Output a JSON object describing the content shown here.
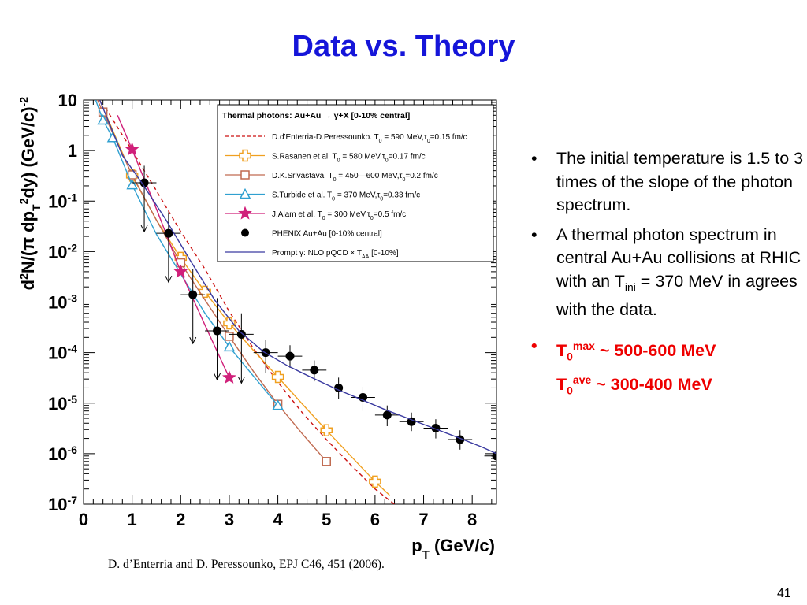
{
  "slide": {
    "title": "Data vs. Theory",
    "citation": "D. d’Enterria and D. Peressounko, EPJ C46, 451 (2006).",
    "page_number": "41",
    "bullets": [
      {
        "text": "The initial temperature is 1.5 to 3 times of the slope of the photon spectrum."
      },
      {
        "pre": "A thermal photon spectrum in central Au+Au collisions at RHIC with an T",
        "sub": "ini",
        "post": " = 370 MeV in agrees with the data."
      }
    ],
    "red_bullet": {
      "l1_base": "T",
      "l1_sub": "0",
      "l1_sup": "max",
      "l1_rest": " ~ 500-600 MeV",
      "l2_base": "T",
      "l2_sub": "0",
      "l2_sup": "ave",
      "l2_rest": " ~  300-400 MeV"
    }
  },
  "chart_data": {
    "type": "scatter",
    "title": "Thermal photons: Au+Au → γ+X  [0-10% central]",
    "xlabel": "p_T (GeV/c)",
    "ylabel": "d²N/(π dp_T²dy) (GeV/c)⁻²",
    "xlim": [
      0,
      8.5
    ],
    "ylim": [
      1e-07,
      10
    ],
    "ylog": true,
    "x_ticks": [
      "0",
      "1",
      "2",
      "3",
      "4",
      "5",
      "6",
      "7",
      "8"
    ],
    "y_ticks": [
      {
        "base": "10",
        "exp": ""
      },
      {
        "base": "1",
        "exp": ""
      },
      {
        "base": "10",
        "exp": "-1"
      },
      {
        "base": "10",
        "exp": "-2"
      },
      {
        "base": "10",
        "exp": "-3"
      },
      {
        "base": "10",
        "exp": "-4"
      },
      {
        "base": "10",
        "exp": "-5"
      },
      {
        "base": "10",
        "exp": "-6"
      },
      {
        "base": "10",
        "exp": "-7"
      }
    ],
    "series": [
      {
        "name": "D.d'Enterria-D.Peressounko, T₀ = 590 MeV, τ₀=0.15 fm/c",
        "style": "dashed-curve",
        "color": "#cc1111",
        "curve": [
          [
            0.45,
            7
          ],
          [
            1,
            1
          ],
          [
            1.5,
            0.16
          ],
          [
            2,
            0.025
          ],
          [
            2.5,
            0.0045
          ],
          [
            3,
            0.00065
          ],
          [
            3.5,
            0.00012
          ],
          [
            4,
            2.6e-05
          ],
          [
            4.5,
            6.5e-06
          ],
          [
            5,
            1.9e-06
          ],
          [
            5.5,
            6e-07
          ],
          [
            6,
            2e-07
          ],
          [
            6.6,
            7e-08
          ]
        ]
      },
      {
        "name": "S.Rasanen et al. T₀ = 580 MeV, τ₀=0.17 fm/c",
        "style": "curve-cross",
        "color": "#f0a020",
        "points": [
          [
            1,
            0.32
          ],
          [
            2,
            0.0075
          ],
          [
            2.5,
            0.0016
          ],
          [
            3,
            0.00038
          ],
          [
            4,
            3.3e-05
          ],
          [
            5,
            2.9e-06
          ],
          [
            6,
            2.8e-07
          ]
        ],
        "curve": [
          [
            0.3,
            12
          ],
          [
            1,
            0.32
          ],
          [
            1.5,
            0.042
          ],
          [
            2,
            0.0075
          ],
          [
            2.5,
            0.0016
          ],
          [
            3,
            0.00038
          ],
          [
            3.5,
            0.00011
          ],
          [
            4,
            3.3e-05
          ],
          [
            4.5,
            9.7e-06
          ],
          [
            5,
            2.9e-06
          ],
          [
            5.5,
            9e-07
          ],
          [
            6,
            2.8e-07
          ],
          [
            6.3,
            1.5e-07
          ]
        ]
      },
      {
        "name": "D.K.Srivastava, T₀ = 450–600 MeV, τ₀=0.2 fm/c",
        "style": "curve-square",
        "color": "#c06a50",
        "points": [
          [
            0.4,
            5.8
          ],
          [
            1,
            0.33
          ],
          [
            2,
            0.006
          ],
          [
            3,
            0.00021
          ],
          [
            4,
            9.5e-06
          ],
          [
            5,
            7e-07
          ]
        ],
        "curve": [
          [
            0.25,
            12
          ],
          [
            0.4,
            5.8
          ],
          [
            1,
            0.33
          ],
          [
            1.5,
            0.042
          ],
          [
            2,
            0.006
          ],
          [
            2.5,
            0.0011
          ],
          [
            3,
            0.00021
          ],
          [
            3.5,
            4.2e-05
          ],
          [
            4,
            9.5e-06
          ],
          [
            4.5,
            2.5e-06
          ],
          [
            5,
            7e-07
          ]
        ]
      },
      {
        "name": "S.Turbide et al. T₀ = 370 MeV, τ₀=0.33 fm/c",
        "style": "curve-triangle",
        "color": "#30a0d0",
        "points": [
          [
            0.4,
            4
          ],
          [
            0.6,
            1.8
          ],
          [
            1,
            0.21
          ],
          [
            3,
            0.00013
          ],
          [
            4,
            9e-06
          ]
        ],
        "curve": [
          [
            0.25,
            10
          ],
          [
            0.4,
            4
          ],
          [
            0.6,
            1.8
          ],
          [
            1,
            0.21
          ],
          [
            1.5,
            0.022
          ],
          [
            2,
            0.0036
          ],
          [
            2.5,
            0.0006
          ],
          [
            3,
            0.00013
          ],
          [
            3.5,
            3.4e-05
          ],
          [
            4,
            9e-06
          ]
        ]
      },
      {
        "name": "J.Alam et al. T₀ = 300 MeV, τ₀=0.5 fm/c",
        "style": "curve-star",
        "color": "#d0207a",
        "points": [
          [
            1,
            1.05
          ],
          [
            2,
            0.004
          ],
          [
            3,
            3.2e-05
          ]
        ],
        "curve": [
          [
            0.7,
            5
          ],
          [
            1,
            1.05
          ],
          [
            1.5,
            0.07
          ],
          [
            2,
            0.004
          ],
          [
            2.5,
            0.00035
          ],
          [
            3,
            3.2e-05
          ]
        ]
      },
      {
        "name": "PHENIX Au+Au [0-10% central]",
        "style": "points",
        "color": "#000000",
        "points": [
          {
            "x": 1.25,
            "y": 0.23,
            "xerr": 0.25,
            "up": 0.5,
            "upper_limit": true
          },
          {
            "x": 1.75,
            "y": 0.023,
            "xerr": 0.25,
            "up": 0.06,
            "upper_limit": true
          },
          {
            "x": 2.25,
            "y": 0.0014,
            "xerr": 0.25,
            "up": 0.0045,
            "upper_limit": true
          },
          {
            "x": 2.75,
            "y": 0.00027,
            "xerr": 0.25,
            "up": 0.0012,
            "upper_limit": true
          },
          {
            "x": 3.25,
            "y": 0.00023,
            "xerr": 0.25,
            "up": 0.0006,
            "upper_limit": true
          },
          {
            "x": 3.75,
            "y": 0.0001,
            "xerr": 0.25,
            "up": 0.00018,
            "lo": 4e-05
          },
          {
            "x": 4.25,
            "y": 8.5e-05,
            "xerr": 0.25,
            "up": 0.00014,
            "lo": 5e-05
          },
          {
            "x": 4.75,
            "y": 4.5e-05,
            "xerr": 0.25,
            "up": 7e-05,
            "lo": 2.7e-05
          },
          {
            "x": 5.25,
            "y": 2e-05,
            "xerr": 0.25,
            "up": 3.2e-05,
            "lo": 1.2e-05
          },
          {
            "x": 5.75,
            "y": 1.3e-05,
            "xerr": 0.25,
            "up": 2.1e-05,
            "lo": 7e-06
          },
          {
            "x": 6.25,
            "y": 5.8e-06,
            "xerr": 0.25,
            "up": 9e-06,
            "lo": 3.5e-06
          },
          {
            "x": 6.75,
            "y": 4.3e-06,
            "xerr": 0.25,
            "up": 6.5e-06,
            "lo": 2.8e-06
          },
          {
            "x": 7.25,
            "y": 3.2e-06,
            "xerr": 0.25,
            "up": 4.8e-06,
            "lo": 2e-06
          },
          {
            "x": 7.75,
            "y": 1.9e-06,
            "xerr": 0.25,
            "up": 2.9e-06,
            "lo": 1.2e-06
          },
          {
            "x": 8.5,
            "y": 9e-07,
            "xerr": 0.25,
            "up": 1.3e-06,
            "lo": 6.5e-07
          }
        ]
      },
      {
        "name": "Prompt γ: NLO pQCD × T_AA [0-10%]",
        "style": "curve",
        "color": "#3a3aa0",
        "curve": [
          [
            0.3,
            12
          ],
          [
            0.8,
            0.8
          ],
          [
            1.2,
            0.23
          ],
          [
            1.7,
            0.042
          ],
          [
            2.2,
            0.0066
          ],
          [
            2.7,
            0.0011
          ],
          [
            3.2,
            0.00027
          ],
          [
            3.7,
            0.000105
          ],
          [
            4.2,
            5.5e-05
          ],
          [
            4.7,
            3.2e-05
          ],
          [
            5.2,
            1.9e-05
          ],
          [
            5.7,
            1.2e-05
          ],
          [
            6.2,
            7.5e-06
          ],
          [
            6.7,
            4.9e-06
          ],
          [
            7.2,
            3.2e-06
          ],
          [
            7.7,
            2.1e-06
          ],
          [
            8.2,
            1.35e-06
          ],
          [
            8.5,
            1e-06
          ]
        ]
      }
    ],
    "legend": {
      "position": "top-right",
      "entries": [
        {
          "pre": "D.d'Enterria-D.Peressounko. T",
          "sub": "0",
          "post": " = 590 MeV,τ",
          "sub2": "0",
          "post2": "=0.15 fm/c"
        },
        {
          "pre": "S.Rasanen et al. T",
          "sub": "0",
          "post": " = 580 MeV,τ",
          "sub2": "0",
          "post2": "=0.17 fm/c"
        },
        {
          "pre": "D.K.Srivastava. T",
          "sub": "0",
          "post": " = 450—600 MeV,τ",
          "sub2": "0",
          "post2": "=0.2 fm/c"
        },
        {
          "pre": "S.Turbide et al. T",
          "sub": "0",
          "post": " = 370 MeV,τ",
          "sub2": "0",
          "post2": "=0.33 fm/c"
        },
        {
          "pre": "J.Alam et al. T",
          "sub": "0",
          "post": " = 300 MeV,τ",
          "sub2": "0",
          "post2": "=0.5 fm/c"
        },
        {
          "pre": "PHENIX Au+Au [0-10% central]",
          "sub": "",
          "post": "",
          "sub2": "",
          "post2": ""
        },
        {
          "pre": "Prompt γ: NLO pQCD × T",
          "sub": "AA",
          "post": " [0-10%]",
          "sub2": "",
          "post2": ""
        }
      ]
    }
  }
}
